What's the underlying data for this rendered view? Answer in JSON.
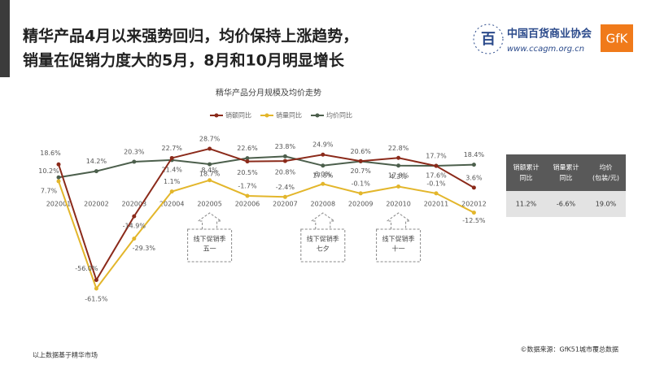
{
  "header": {
    "title_lines": [
      "精华产品4月以来强势回归，均价保持上涨趋势，",
      "销量在促销力度大的5月，8月和10月明显增长"
    ],
    "logo_name": "中国百货商业协会",
    "logo_url": "www.ccagm.org.cn",
    "brand": "GfK"
  },
  "chart_data": {
    "type": "line",
    "title": "精华产品分月规模及均价走势",
    "categories": [
      "202001",
      "202002",
      "202003",
      "202004",
      "202005",
      "202006",
      "202007",
      "202008",
      "202009",
      "202010",
      "202011",
      "202012"
    ],
    "series": [
      {
        "name": "销额同比",
        "color": "#8b2a1a",
        "values": [
          18.6,
          -56.0,
          -14.9,
          22.7,
          28.7,
          20.5,
          20.8,
          24.9,
          20.7,
          22.8,
          17.6,
          3.6
        ],
        "value_labels": [
          "18.6%",
          "-56.0%",
          "-14.9%",
          "22.7%",
          "28.7%",
          "20.5%",
          "20.8%",
          "24.9%",
          "20.7%",
          "22.8%",
          "17.6%",
          "3.6%"
        ]
      },
      {
        "name": "销量同比",
        "color": "#e3b62b",
        "values": [
          7.7,
          -61.5,
          -29.3,
          1.1,
          8.4,
          -1.7,
          -2.4,
          6.0,
          -0.1,
          4.3,
          -0.1,
          -12.5
        ],
        "value_labels": [
          "7.7%",
          "-61.5%",
          "-29.3%",
          "1.1%",
          "8.4%",
          "-1.7%",
          "-2.4%",
          "6.0%",
          "-0.1%",
          "4.3%",
          "-0.1%",
          "-12.5%"
        ]
      },
      {
        "name": "均价同比",
        "color": "#4c5f4c",
        "values": [
          10.2,
          14.2,
          20.3,
          21.4,
          18.7,
          22.6,
          23.8,
          17.8,
          20.6,
          17.8,
          17.7,
          18.4
        ],
        "value_labels": [
          "10.2%",
          "14.2%",
          "20.3%",
          "21.4%",
          "18.7%",
          "22.6%",
          "23.8%",
          "17.8%",
          "20.6%",
          "17.8%",
          "17.7%",
          "18.4%"
        ]
      }
    ],
    "annotations": [
      {
        "title": "线下促销季",
        "label": "五一"
      },
      {
        "title": "线下促销季",
        "label": "七夕"
      },
      {
        "title": "线下促销季",
        "label": "十一"
      }
    ]
  },
  "table": {
    "headers": [
      [
        "销额累计",
        "同比"
      ],
      [
        "销量累计",
        "同比"
      ],
      [
        "均价",
        "(包装/元)"
      ]
    ],
    "rows": [
      [
        "11.2%",
        "-6.6%",
        "19.0%"
      ]
    ]
  },
  "footer": {
    "note": "以上数据基于精华市场",
    "source": "©数据来源：GfK51城市覆总数据"
  }
}
